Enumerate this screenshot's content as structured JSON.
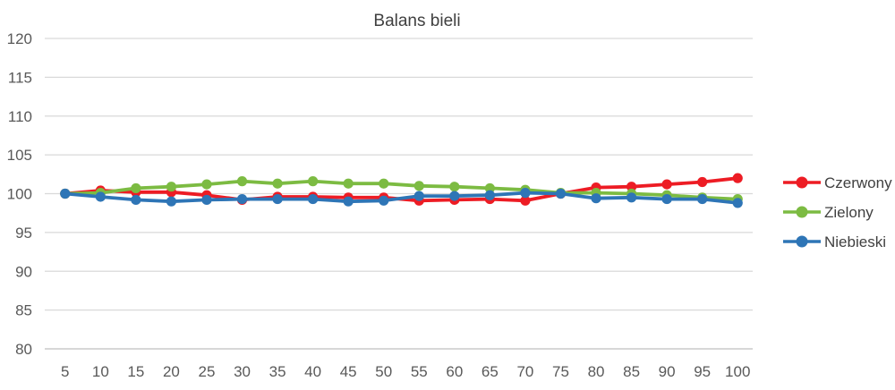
{
  "chart_data": {
    "type": "line",
    "title": "Balans bieli",
    "x": [
      5,
      10,
      15,
      20,
      25,
      30,
      35,
      40,
      45,
      50,
      55,
      60,
      65,
      70,
      75,
      80,
      85,
      90,
      95,
      100
    ],
    "series": [
      {
        "name": "Czerwony",
        "color": "#ED1C24",
        "values": [
          100.0,
          100.4,
          100.2,
          100.2,
          99.8,
          99.2,
          99.6,
          99.6,
          99.5,
          99.5,
          99.1,
          99.2,
          99.3,
          99.1,
          100.0,
          100.8,
          100.9,
          101.2,
          101.5,
          102.0
        ]
      },
      {
        "name": "Zielony",
        "color": "#7CBB42",
        "values": [
          100.0,
          100.1,
          100.7,
          100.9,
          101.2,
          101.6,
          101.3,
          101.6,
          101.3,
          101.3,
          101.0,
          100.9,
          100.7,
          100.5,
          100.1,
          100.1,
          100.0,
          99.8,
          99.5,
          99.3
        ]
      },
      {
        "name": "Niebieski",
        "color": "#2E75B6",
        "values": [
          100.0,
          99.6,
          99.2,
          99.0,
          99.2,
          99.3,
          99.3,
          99.3,
          99.0,
          99.1,
          99.7,
          99.7,
          99.8,
          100.1,
          100.0,
          99.4,
          99.5,
          99.3,
          99.3,
          98.8
        ]
      }
    ],
    "ylim": [
      80,
      120
    ],
    "ytick_step": 5,
    "grid": true,
    "legend_position": "right"
  },
  "style": {
    "grid_color": "#D9D9D9",
    "axis_color": "#BFBFBF",
    "tick_label_color": "#595959",
    "title_color": "#404040",
    "legend_label_color": "#404040"
  }
}
